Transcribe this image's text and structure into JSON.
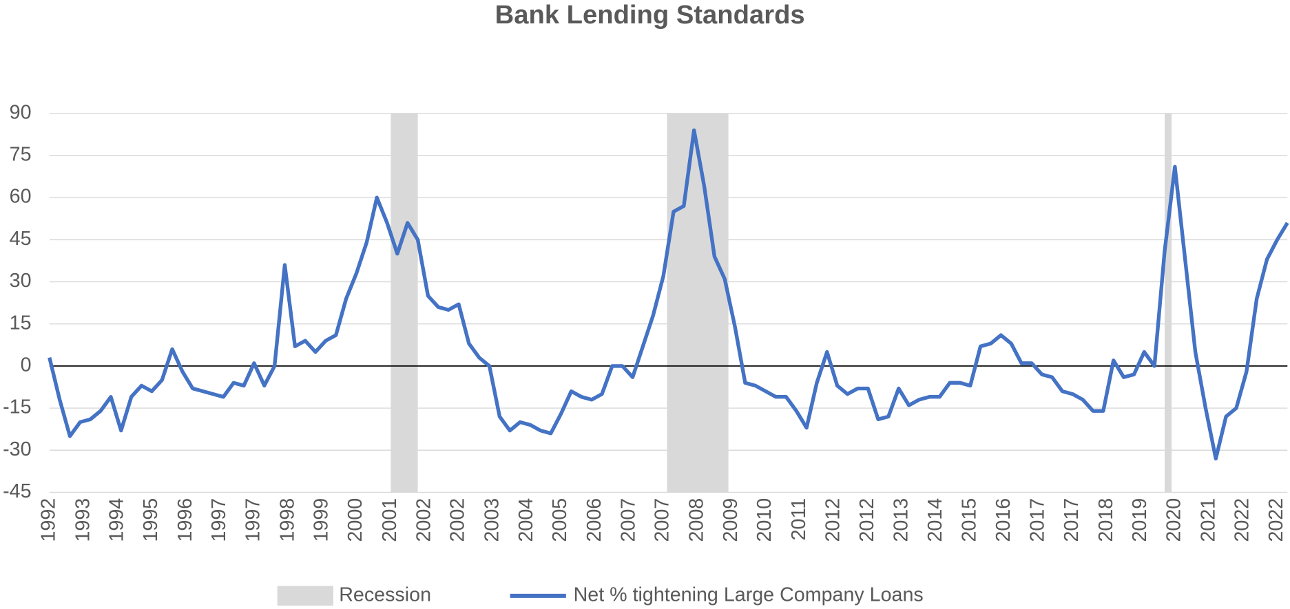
{
  "chart_data": {
    "type": "line",
    "title": "Bank Lending Standards",
    "x": [
      1992.83,
      1993.08,
      1993.33,
      1993.58,
      1993.83,
      1994.08,
      1994.33,
      1994.58,
      1994.83,
      1995.08,
      1995.33,
      1995.58,
      1995.83,
      1996.08,
      1996.33,
      1996.58,
      1996.83,
      1997.08,
      1997.33,
      1997.58,
      1997.83,
      1998.08,
      1998.33,
      1998.58,
      1998.83,
      1999.08,
      1999.33,
      1999.58,
      1999.83,
      2000.08,
      2000.33,
      2000.58,
      2000.83,
      2001.08,
      2001.33,
      2001.58,
      2001.83,
      2002.08,
      2002.33,
      2002.58,
      2002.83,
      2003.08,
      2003.33,
      2003.58,
      2003.83,
      2004.08,
      2004.33,
      2004.58,
      2004.83,
      2005.08,
      2005.33,
      2005.58,
      2005.83,
      2006.08,
      2006.33,
      2006.58,
      2006.83,
      2007.08,
      2007.33,
      2007.58,
      2007.83,
      2008.08,
      2008.33,
      2008.58,
      2008.83,
      2009.08,
      2009.33,
      2009.58,
      2009.83,
      2010.08,
      2010.33,
      2010.58,
      2010.83,
      2011.08,
      2011.33,
      2011.58,
      2011.83,
      2012.08,
      2012.33,
      2012.58,
      2012.83,
      2013.08,
      2013.33,
      2013.58,
      2013.83,
      2014.08,
      2014.33,
      2014.58,
      2014.83,
      2015.08,
      2015.33,
      2015.58,
      2015.83,
      2016.08,
      2016.33,
      2016.58,
      2016.83,
      2017.08,
      2017.33,
      2017.58,
      2017.83,
      2018.08,
      2018.33,
      2018.58,
      2018.83,
      2019.08,
      2019.33,
      2019.58,
      2019.83,
      2020.08,
      2020.33,
      2020.58,
      2020.83,
      2021.08,
      2021.33,
      2021.58,
      2021.83,
      2022.08,
      2022.33,
      2022.58,
      2022.83,
      2023.08
    ],
    "series": [
      {
        "name": "Net % tightening Large Company Loans",
        "color": "#4472c4",
        "values": [
          3,
          -12,
          -25,
          -20,
          -19,
          -16,
          -11,
          -23,
          -11,
          -7,
          -9,
          -5,
          6,
          -2,
          -8,
          -9,
          -10,
          -11,
          -6,
          -7,
          1,
          -7,
          0,
          36,
          7,
          9,
          5,
          9,
          11,
          24,
          33,
          44,
          60,
          51,
          40,
          51,
          45,
          25,
          21,
          20,
          22,
          8,
          3,
          0,
          -18,
          -23,
          -20,
          -21,
          -23,
          -24,
          -17,
          -9,
          -11,
          -12,
          -10,
          0,
          0,
          -4,
          7,
          18,
          32,
          55,
          57,
          84,
          64,
          39,
          31,
          14,
          -6,
          -7,
          -9,
          -11,
          -11,
          -16,
          -22,
          -6,
          5,
          -7,
          -10,
          -8,
          -8,
          -19,
          -18,
          -8,
          -14,
          -12,
          -11,
          -11,
          -6,
          -6,
          -7,
          7,
          8,
          11,
          8,
          1,
          1,
          -3,
          -4,
          -9,
          -10,
          -12,
          -16,
          -16,
          2,
          -4,
          -3,
          5,
          0,
          41,
          71,
          38,
          5,
          -15,
          -33,
          -18,
          -15,
          -2,
          24,
          38,
          45,
          51
        ]
      }
    ],
    "shaded_regions": {
      "name": "Recession",
      "color": "#d9d9d9",
      "ranges": [
        [
          2001.17,
          2001.83
        ],
        [
          2007.92,
          2009.42
        ],
        [
          2020.08,
          2020.25
        ]
      ]
    },
    "xlim": [
      1992.83,
      2023.08
    ],
    "xticks": [
      {
        "value": 1992.83,
        "label": "1992"
      },
      {
        "value": 1993.67,
        "label": "1993"
      },
      {
        "value": 1994.5,
        "label": "1994"
      },
      {
        "value": 1995.33,
        "label": "1995"
      },
      {
        "value": 1996.17,
        "label": "1996"
      },
      {
        "value": 1997.0,
        "label": "1997"
      },
      {
        "value": 1997.83,
        "label": "1997"
      },
      {
        "value": 1998.67,
        "label": "1998"
      },
      {
        "value": 1999.5,
        "label": "1999"
      },
      {
        "value": 2000.33,
        "label": "2000"
      },
      {
        "value": 2001.17,
        "label": "2001"
      },
      {
        "value": 2002.0,
        "label": "2002"
      },
      {
        "value": 2002.83,
        "label": "2002"
      },
      {
        "value": 2003.67,
        "label": "2003"
      },
      {
        "value": 2004.5,
        "label": "2004"
      },
      {
        "value": 2005.33,
        "label": "2005"
      },
      {
        "value": 2006.17,
        "label": "2006"
      },
      {
        "value": 2007.0,
        "label": "2007"
      },
      {
        "value": 2007.83,
        "label": "2007"
      },
      {
        "value": 2008.67,
        "label": "2008"
      },
      {
        "value": 2009.5,
        "label": "2009"
      },
      {
        "value": 2010.33,
        "label": "2010"
      },
      {
        "value": 2011.17,
        "label": "2011"
      },
      {
        "value": 2012.0,
        "label": "2012"
      },
      {
        "value": 2012.83,
        "label": "2012"
      },
      {
        "value": 2013.67,
        "label": "2013"
      },
      {
        "value": 2014.5,
        "label": "2014"
      },
      {
        "value": 2015.33,
        "label": "2015"
      },
      {
        "value": 2016.17,
        "label": "2016"
      },
      {
        "value": 2017.0,
        "label": "2017"
      },
      {
        "value": 2017.83,
        "label": "2017"
      },
      {
        "value": 2018.67,
        "label": "2018"
      },
      {
        "value": 2019.5,
        "label": "2019"
      },
      {
        "value": 2020.33,
        "label": "2020"
      },
      {
        "value": 2021.17,
        "label": "2021"
      },
      {
        "value": 2022.0,
        "label": "2022"
      },
      {
        "value": 2022.83,
        "label": "2022"
      }
    ],
    "ylim": [
      -45,
      90
    ],
    "yticks": [
      -45,
      -30,
      -15,
      0,
      15,
      30,
      45,
      60,
      75,
      90
    ],
    "grid": true
  }
}
